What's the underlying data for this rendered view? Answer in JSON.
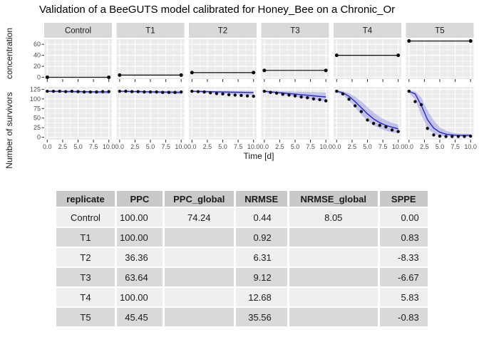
{
  "chart_data": {
    "type": "line",
    "title": "Validation of a BeeGUTS model calibrated for Honey_Bee on a  Chronic_Or",
    "xlabel": "Time [d]",
    "facets": [
      "Control",
      "T1",
      "T2",
      "T3",
      "T4",
      "T5"
    ],
    "x_ticks": [
      "0.0",
      "2.5",
      "5.0",
      "7.5",
      "10.0"
    ],
    "x_tick_values": [
      0,
      2.5,
      5,
      7.5,
      10
    ],
    "x_minor_values": [
      1.25,
      3.75,
      6.25,
      8.75
    ],
    "x_range": [
      0,
      10
    ],
    "top_row": {
      "ylabel": "concentration",
      "yticks": [
        0,
        20,
        40,
        60
      ],
      "yminor": [
        10,
        30,
        50
      ],
      "ylim": [
        0,
        66
      ],
      "concentrations": [
        0,
        4,
        8.5,
        12.5,
        40,
        66
      ]
    },
    "bottom_row": {
      "ylabel": "Number of survivors",
      "yticks": [
        0,
        25,
        50,
        75,
        100,
        125
      ],
      "yminor": [
        12.5,
        37.5,
        62.5,
        87.5,
        112.5
      ],
      "ylim": [
        0,
        125
      ],
      "days": [
        0,
        1,
        2,
        3,
        4,
        5,
        6,
        7,
        8,
        9,
        10
      ],
      "facets": [
        {
          "name": "Control",
          "observed": [
            120,
            120,
            120,
            119,
            120,
            119,
            118,
            118,
            118,
            119,
            119
          ],
          "predicted": [
            120,
            119.8,
            119.6,
            119.4,
            119.2,
            119,
            118.8,
            118.6,
            118.4,
            118.2,
            118
          ],
          "ribbon_low": [
            118,
            117.5,
            117,
            116.5,
            116,
            115.5,
            115,
            114.5,
            114,
            113.5,
            113
          ],
          "ribbon_high": [
            121.5,
            121.4,
            121.3,
            121.2,
            121.1,
            121,
            120.9,
            120.8,
            120.7,
            120.6,
            120.5
          ]
        },
        {
          "name": "T1",
          "observed": [
            120,
            120,
            119,
            119,
            118,
            118,
            118,
            117,
            117,
            117,
            118
          ],
          "predicted": [
            120,
            119.7,
            119.4,
            119.1,
            118.8,
            118.5,
            118.2,
            117.9,
            117.6,
            117.3,
            117
          ],
          "ribbon_low": [
            118,
            117,
            116.3,
            115.7,
            115,
            114.5,
            114,
            113.5,
            113,
            112.5,
            112
          ],
          "ribbon_high": [
            121.5,
            121.3,
            121.1,
            121,
            120.9,
            120.8,
            120.7,
            120.6,
            120.5,
            120.4,
            120.3
          ]
        },
        {
          "name": "T2",
          "observed": [
            120,
            119,
            118,
            116,
            114,
            113,
            111,
            110,
            109,
            108,
            107
          ],
          "predicted": [
            120,
            119.6,
            119.2,
            118.8,
            118.4,
            118,
            117.7,
            117.4,
            117.1,
            116.8,
            116.5
          ],
          "ribbon_low": [
            118,
            117,
            116,
            115,
            114,
            113,
            112.3,
            111.6,
            111,
            110.4,
            109.8
          ],
          "ribbon_high": [
            121.5,
            121.3,
            121.1,
            121,
            120.9,
            120.8,
            120.7,
            120.6,
            120.5,
            120.4,
            120.3
          ]
        },
        {
          "name": "T3",
          "observed": [
            120,
            117,
            115,
            112,
            110,
            108,
            105,
            103,
            100,
            98,
            95
          ],
          "predicted": [
            120,
            118.5,
            117,
            115.5,
            114,
            112.5,
            111,
            109.5,
            108,
            106.5,
            105
          ],
          "ribbon_low": [
            117,
            115,
            113,
            111,
            108.5,
            106,
            103.5,
            101,
            98.5,
            96,
            93
          ],
          "ribbon_high": [
            121.5,
            121,
            120.5,
            120,
            119.5,
            119,
            118.5,
            118,
            117.5,
            117,
            116.5
          ]
        },
        {
          "name": "T4",
          "observed": [
            120,
            113,
            99,
            82,
            67,
            45,
            36,
            31,
            27,
            19,
            15
          ],
          "predicted": [
            120,
            116,
            107,
            93,
            77,
            61,
            48,
            38,
            31,
            26,
            22
          ],
          "ribbon_low": [
            117,
            110,
            96,
            78,
            59,
            43,
            31,
            23,
            17,
            13,
            10
          ],
          "ribbon_high": [
            122,
            120,
            115,
            106,
            93,
            79,
            65,
            53,
            44,
            38,
            33
          ]
        },
        {
          "name": "T5",
          "observed": [
            120,
            93,
            85,
            23,
            6,
            3,
            2,
            2,
            2,
            2,
            3
          ],
          "predicted": [
            120,
            113,
            83,
            46,
            24,
            13,
            8,
            6,
            5,
            5,
            5
          ],
          "ribbon_low": [
            116,
            98,
            58,
            24,
            9,
            4,
            2,
            2,
            1,
            1,
            1
          ],
          "ribbon_high": [
            122,
            119,
            104,
            70,
            44,
            26,
            17,
            12,
            10,
            9,
            9
          ]
        }
      ]
    }
  },
  "table": {
    "headers": [
      "replicate",
      "PPC",
      "PPC_global",
      "NRMSE",
      "NRMSE_global",
      "SPPE"
    ],
    "rows": [
      [
        "Control",
        "100.00",
        "74.24",
        "0.44",
        "8.05",
        "0.00"
      ],
      [
        "T1",
        "100.00",
        "",
        "0.92",
        "",
        "0.83"
      ],
      [
        "T2",
        "36.36",
        "",
        "6.31",
        "",
        "-8.33"
      ],
      [
        "T3",
        "63.64",
        "",
        "9.12",
        "",
        "-6.67"
      ],
      [
        "T4",
        "100.00",
        "",
        "12.68",
        "",
        "5.83"
      ],
      [
        "T5",
        "45.45",
        "",
        "35.56",
        "",
        "-0.83"
      ]
    ]
  },
  "colors": {
    "panel_bg": "#ebebeb",
    "strip_bg": "#d9d9d9",
    "grid": "#ffffff",
    "point": "#0a0a0a",
    "line": "#2727cc",
    "ribbon": "rgba(90,90,225,0.30)",
    "tick": "#333333",
    "tick_label": "#4d4d4d",
    "strip_text": "#1a1a1a"
  }
}
